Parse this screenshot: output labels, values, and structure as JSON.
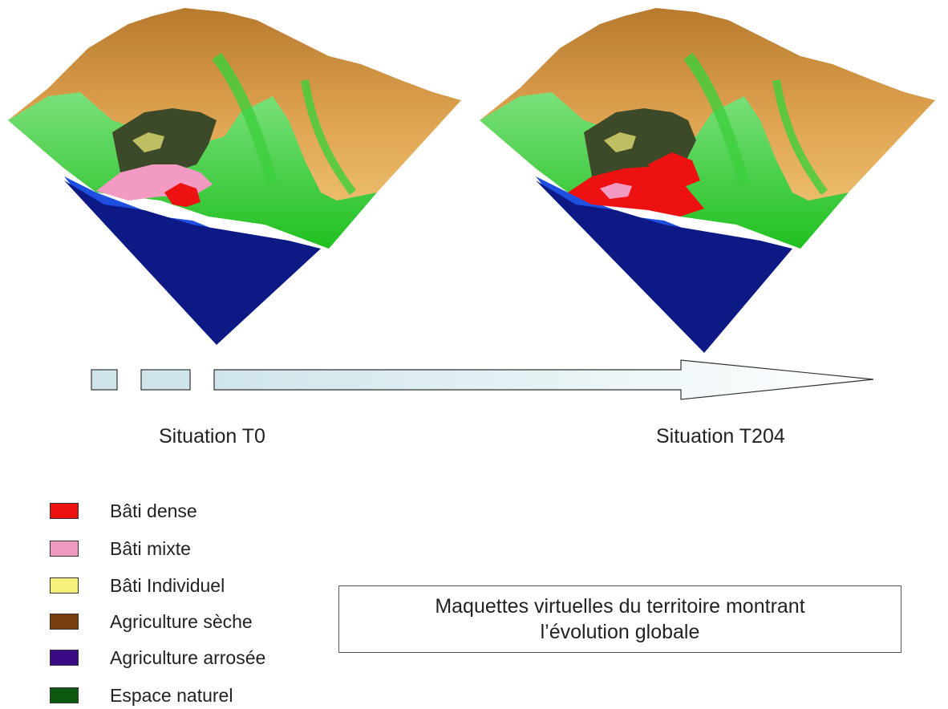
{
  "situations": {
    "t0_label": "Situation T0",
    "t204_label": "Situation T204"
  },
  "legend": [
    {
      "label": "Bâti dense",
      "color": "#ee1111"
    },
    {
      "label": "Bâti mixte",
      "color": "#f29ac2"
    },
    {
      "label": "Bâti Individuel",
      "color": "#f5f07a"
    },
    {
      "label": "Agriculture sèche",
      "color": "#7a3d0f"
    },
    {
      "label": "Agriculture arrosée",
      "color": "#3b0a87"
    },
    {
      "label": "Espace naturel",
      "color": "#0f5a12"
    }
  ],
  "caption": {
    "line1": "Maquettes virtuelles du territoire montrant",
    "line2": "l’évolution globale"
  },
  "colors": {
    "sea": "#0d1a86",
    "coast_blue": "#1e4fe0",
    "lowland_green": "#2fd12f",
    "mountain_orange": "#d99a45",
    "peak_tan": "#b77a2e",
    "arrow_fill": "#cfe5ea"
  }
}
